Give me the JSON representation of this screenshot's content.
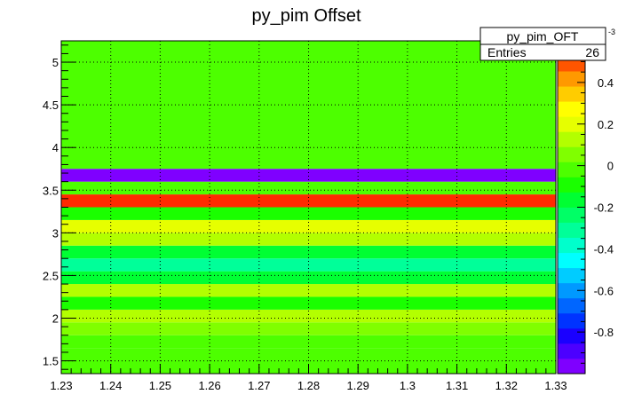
{
  "chart_data": {
    "type": "heatmap",
    "title": "py_pim Offset",
    "xlabel": "",
    "ylabel": "",
    "xlim": [
      1.23,
      1.33
    ],
    "ylim": [
      1.35,
      5.25
    ],
    "x_ticks": [
      "1.23",
      "1.24",
      "1.25",
      "1.26",
      "1.27",
      "1.28",
      "1.29",
      "1.3",
      "1.31",
      "1.32",
      "1.33"
    ],
    "y_ticks": [
      "1.5",
      "2",
      "2.5",
      "3",
      "3.5",
      "4",
      "4.5",
      "5"
    ],
    "grid": true,
    "bands": [
      {
        "y0": 1.35,
        "y1": 1.65,
        "value": 0.0
      },
      {
        "y0": 1.65,
        "y1": 1.8,
        "value": -0.02
      },
      {
        "y0": 1.8,
        "y1": 1.95,
        "value": 0.02
      },
      {
        "y0": 1.95,
        "y1": 2.1,
        "value": 0.12
      },
      {
        "y0": 2.1,
        "y1": 2.25,
        "value": -0.1
      },
      {
        "y0": 2.25,
        "y1": 2.4,
        "value": 0.12
      },
      {
        "y0": 2.4,
        "y1": 2.55,
        "value": -0.15
      },
      {
        "y0": 2.55,
        "y1": 2.7,
        "value": -0.28
      },
      {
        "y0": 2.7,
        "y1": 2.85,
        "value": -0.15
      },
      {
        "y0": 2.85,
        "y1": 3.0,
        "value": 0.12
      },
      {
        "y0": 3.0,
        "y1": 3.15,
        "value": 0.22
      },
      {
        "y0": 3.15,
        "y1": 3.3,
        "value": -0.1
      },
      {
        "y0": 3.3,
        "y1": 3.45,
        "value": 0.55
      },
      {
        "y0": 3.45,
        "y1": 3.6,
        "value": -0.05
      },
      {
        "y0": 3.6,
        "y1": 3.75,
        "value": -0.95
      },
      {
        "y0": 3.75,
        "y1": 5.25,
        "value": -0.02
      }
    ],
    "colorbar": {
      "min": -1.0,
      "max": 0.6,
      "ticks": [
        "0.4",
        "0.2",
        "0",
        "-0.2",
        "-0.4",
        "-0.6",
        "-0.8"
      ],
      "exponent": "-3",
      "colors": [
        "#7f00ff",
        "#4c00ff",
        "#1a00ff",
        "#0033ff",
        "#0066ff",
        "#0099ff",
        "#00ccff",
        "#00ffff",
        "#00ffcc",
        "#00ff99",
        "#00ff66",
        "#00ff33",
        "#1aff00",
        "#4dff00",
        "#80ff00",
        "#b3ff00",
        "#e6ff00",
        "#ffff00",
        "#ffcc00",
        "#ff9900",
        "#ff5500",
        "#ff2a00"
      ]
    }
  },
  "stats": {
    "name": "py_pim_OFT",
    "entries_label": "Entries",
    "entries_value": "26"
  }
}
